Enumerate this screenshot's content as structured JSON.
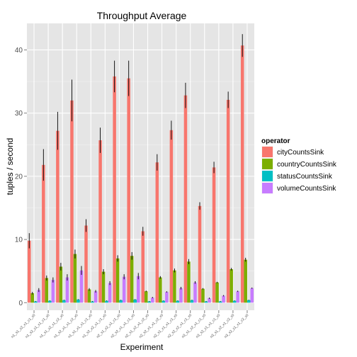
{
  "chart_data": {
    "type": "bar",
    "title": "Throughput Average",
    "xlabel": "Experiment",
    "ylabel": "tuples / second",
    "ylim": [
      -1.2,
      44.2
    ],
    "yticks": [
      0,
      10,
      20,
      30,
      40
    ],
    "grid": true,
    "legend_title": "operator",
    "legend_position": "right",
    "categories": [
      "n1_s1_x2_x1_c1_x0",
      "n1_s2_x1_x1_c1_x0",
      "n1_s1_x2_x1_c2_x0",
      "n1_s2_x1_x1_c2_x0",
      "n1_s1_x1_x1_c1_x0",
      "n1_s2_x2_x1_c1_x0",
      "n2_s1_x2_x1_c1_x0",
      "n2_s2_x1_x1_c1_x0",
      "n2_s1_x2_x1_c2_x0",
      "n2_s2_x1_x1_c2_x0",
      "n2_s1_x1_x1_c1_x0",
      "n2_s2_x2_x1_c1_x0",
      "n3_s1_x2_x1_c1_x0",
      "n3_s2_x1_x1_c1_x0",
      "n3_s1_x2_x1_c2_x0",
      "n3_s2_x1_x1_c2_x0"
    ],
    "series": [
      {
        "name": "cityCountsSink",
        "color": "#f8766d",
        "values": [
          9.8,
          21.8,
          27.2,
          32.0,
          12.2,
          25.7,
          35.8,
          35.5,
          11.3,
          22.2,
          27.3,
          32.8,
          15.3,
          21.4,
          32.1,
          40.7
        ],
        "errors": [
          1.2,
          2.5,
          3.0,
          3.3,
          1.0,
          2.0,
          2.5,
          2.8,
          0.7,
          1.3,
          1.5,
          2.0,
          0.6,
          0.9,
          1.3,
          1.8
        ]
      },
      {
        "name": "countryCountsSink",
        "color": "#7cae00",
        "values": [
          1.5,
          3.9,
          5.7,
          7.7,
          2.1,
          4.9,
          7.0,
          7.4,
          1.8,
          4.0,
          5.1,
          6.5,
          2.2,
          3.2,
          5.3,
          6.8
        ],
        "errors": [
          0.2,
          0.4,
          0.6,
          0.7,
          0.2,
          0.4,
          0.5,
          0.6,
          0.1,
          0.2,
          0.3,
          0.4,
          0.1,
          0.1,
          0.2,
          0.3
        ]
      },
      {
        "name": "statusCountsSink",
        "color": "#00bfc4",
        "values": [
          0.2,
          0.3,
          0.4,
          0.5,
          0.2,
          0.3,
          0.4,
          0.5,
          0.2,
          0.3,
          0.3,
          0.4,
          0.2,
          0.2,
          0.3,
          0.4
        ],
        "errors": [
          0.05,
          0.05,
          0.05,
          0.05,
          0.05,
          0.05,
          0.05,
          0.05,
          0.05,
          0.05,
          0.05,
          0.05,
          0.05,
          0.05,
          0.05,
          0.05
        ]
      },
      {
        "name": "volumeCountsSink",
        "color": "#c77cff",
        "values": [
          2.0,
          3.6,
          4.0,
          5.1,
          1.8,
          3.1,
          4.1,
          4.2,
          0.8,
          1.7,
          2.3,
          3.2,
          0.7,
          1.1,
          1.8,
          2.3
        ],
        "errors": [
          0.3,
          0.4,
          0.5,
          0.7,
          0.2,
          0.3,
          0.4,
          0.5,
          0.1,
          0.1,
          0.2,
          0.2,
          0.1,
          0.1,
          0.1,
          0.1
        ]
      }
    ]
  }
}
